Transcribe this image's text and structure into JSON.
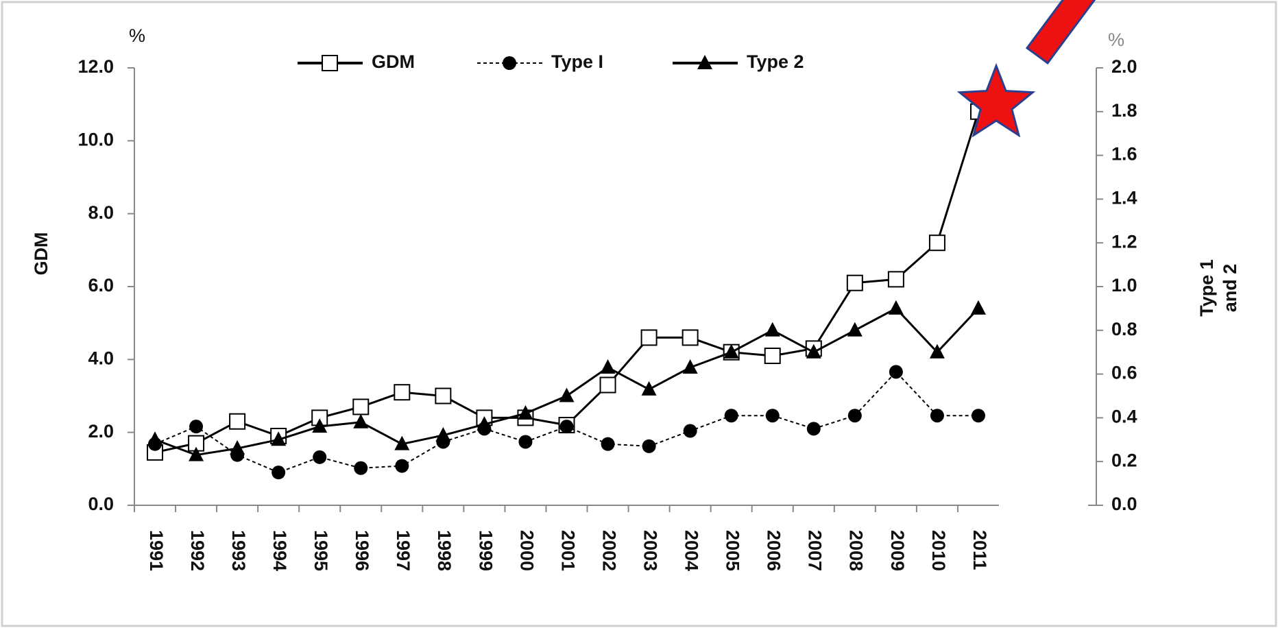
{
  "chart_data": {
    "type": "line",
    "y_unit": "%",
    "y2_unit": "%",
    "ylabel": "GDM",
    "y2label": [
      "Type 1",
      "and 2"
    ],
    "categories": [
      "1991",
      "1992",
      "1993",
      "1994",
      "1995",
      "1996",
      "1997",
      "1998",
      "1999",
      "2000",
      "2001",
      "2002",
      "2003",
      "2004",
      "2005",
      "2006",
      "2007",
      "2008",
      "2009",
      "2010",
      "2011"
    ],
    "series": [
      {
        "name": "GDM",
        "color": "#000000",
        "marker": "square",
        "dash": false,
        "values": [
          1.45,
          1.7,
          2.3,
          1.9,
          2.4,
          2.7,
          3.1,
          3.0,
          2.4,
          2.4,
          2.2,
          3.3,
          4.6,
          4.6,
          4.2,
          4.1,
          4.3,
          6.1,
          6.2,
          7.2,
          10.8
        ]
      },
      {
        "name": "Type I",
        "color": "#000000",
        "marker": "circle",
        "dash": true,
        "axis": "y2",
        "values": [
          0.28,
          0.36,
          0.23,
          0.15,
          0.22,
          0.17,
          0.18,
          0.29,
          0.35,
          0.29,
          0.36,
          0.28,
          0.27,
          0.34,
          0.41,
          0.41,
          0.35,
          0.41,
          0.61,
          0.41,
          0.41
        ]
      },
      {
        "name": "Type 2",
        "color": "#000000",
        "marker": "triangle",
        "dash": false,
        "axis": "y2",
        "values": [
          0.3,
          0.23,
          0.26,
          0.3,
          0.36,
          0.38,
          0.28,
          0.32,
          0.37,
          0.42,
          0.5,
          0.63,
          0.53,
          0.63,
          0.7,
          0.8,
          0.7,
          0.8,
          0.9,
          0.7,
          0.9
        ]
      }
    ],
    "ylim": [
      0,
      12
    ],
    "yticks": [
      {
        "value": 0,
        "label": "0.0"
      },
      {
        "value": 2,
        "label": "2.0"
      },
      {
        "value": 4,
        "label": "4.0"
      },
      {
        "value": 6,
        "label": "6.0"
      },
      {
        "value": 8,
        "label": "8.0"
      },
      {
        "value": 10,
        "label": "10.0"
      },
      {
        "value": 12,
        "label": "12.0"
      }
    ],
    "y2lim": [
      0,
      2
    ],
    "y2ticks": [
      {
        "value": 0,
        "label": "0.0"
      },
      0.2,
      0.4,
      0.6,
      0.8,
      {
        "value": 1,
        "label": "1.0"
      },
      1.2,
      1.4,
      1.6,
      1.8,
      {
        "value": 2,
        "label": "2.0"
      }
    ],
    "grid": false,
    "legend": "top"
  }
}
